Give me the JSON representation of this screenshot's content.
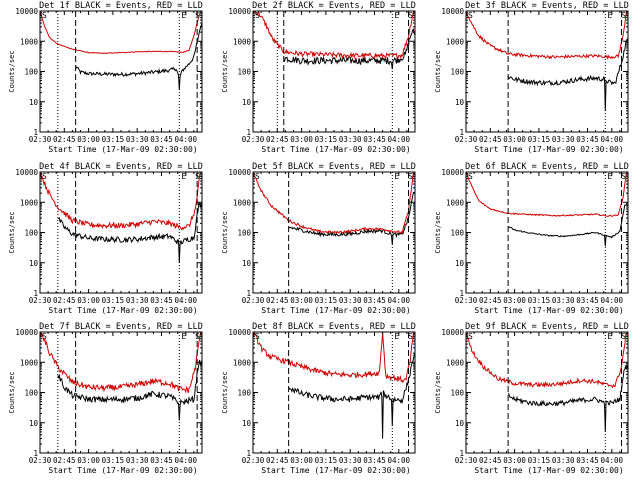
{
  "figure": {
    "xlabel": "Start Time (17-Mar-09 02:30:00)",
    "ylabel": "Counts/sec"
  },
  "chart_data": [
    {
      "type": "line",
      "title": "Det 1f BLACK = Events, RED = LLD",
      "flags": [
        "S",
        "E",
        "S"
      ],
      "xlim_min": [
        0,
        100
      ],
      "ylim": [
        1,
        10000
      ],
      "x_ticks": [
        "02:30",
        "02:45",
        "03:00",
        "03:15",
        "03:30",
        "03:45",
        "04:00"
      ],
      "y_ticks": [
        "1",
        "10",
        "100",
        "1000",
        "10000"
      ],
      "dotted_lines_min": [
        11,
        86
      ],
      "dashed_lines_min": [
        22,
        97
      ],
      "series": [
        {
          "name": "Events",
          "color": "#000000",
          "start_min": 22,
          "anchors_min": [
            22,
            25,
            30,
            40,
            50,
            60,
            70,
            80,
            84,
            86,
            88,
            92,
            95,
            97,
            99
          ],
          "anchors_val": [
            150,
            95,
            85,
            82,
            80,
            85,
            95,
            110,
            125,
            60,
            110,
            180,
            300,
            900,
            3000
          ],
          "noise": 0.06,
          "spikes": [
            [
              86,
              25
            ]
          ]
        },
        {
          "name": "LLD",
          "color": "#d00000",
          "start_min": 0,
          "anchors_min": [
            0,
            3,
            6,
            11,
            20,
            30,
            40,
            50,
            60,
            70,
            80,
            88,
            92,
            95,
            97,
            99
          ],
          "anchors_val": [
            10000,
            3000,
            1300,
            800,
            550,
            420,
            400,
            420,
            450,
            460,
            460,
            430,
            500,
            1500,
            4000,
            10000
          ],
          "noise": 0.01,
          "spikes": []
        }
      ]
    },
    {
      "type": "line",
      "title": "Det 2f BLACK = Events, RED = LLD",
      "flags": [
        "S",
        "E",
        "S"
      ],
      "xlim_min": [
        0,
        100
      ],
      "ylim": [
        1,
        10000
      ],
      "x_ticks": [
        "02:30",
        "02:45",
        "03:00",
        "03:15",
        "03:30",
        "03:45",
        "04:00"
      ],
      "y_ticks": [
        "1",
        "10",
        "100",
        "1000",
        "10000"
      ],
      "dotted_lines_min": [
        15,
        86
      ],
      "dashed_lines_min": [
        19,
        96
      ],
      "series": [
        {
          "name": "Events",
          "color": "#000000",
          "start_min": 19,
          "anchors_min": [
            19,
            30,
            50,
            70,
            86,
            90,
            94,
            98
          ],
          "anchors_val": [
            280,
            230,
            230,
            230,
            230,
            250,
            350,
            2000
          ],
          "noise": 0.12,
          "spikes": [
            [
              86,
              120
            ]
          ]
        },
        {
          "name": "LLD",
          "color": "#d00000",
          "start_min": 0,
          "anchors_min": [
            0,
            4,
            8,
            12,
            19,
            30,
            60,
            86,
            92,
            96,
            99
          ],
          "anchors_val": [
            10000,
            8000,
            3500,
            1200,
            450,
            380,
            340,
            330,
            350,
            1500,
            10000
          ],
          "noise": 0.08,
          "spikes": []
        }
      ]
    },
    {
      "type": "line",
      "title": "Det 3f BLACK = Events, RED = LLD",
      "flags": [
        "S",
        "E",
        "S"
      ],
      "xlim_min": [
        0,
        100
      ],
      "ylim": [
        1,
        10000
      ],
      "x_ticks": [
        "02:30",
        "02:45",
        "03:00",
        "03:15",
        "03:30",
        "03:45",
        "04:00"
      ],
      "y_ticks": [
        "1",
        "10",
        "100",
        "1000",
        "10000"
      ],
      "dotted_lines_min": [
        86
      ],
      "dashed_lines_min": [
        26,
        96
      ],
      "series": [
        {
          "name": "Events",
          "color": "#000000",
          "start_min": 26,
          "anchors_min": [
            26,
            30,
            40,
            50,
            60,
            70,
            80,
            86,
            88,
            92,
            96,
            99
          ],
          "anchors_val": [
            70,
            55,
            45,
            42,
            45,
            55,
            60,
            55,
            45,
            40,
            200,
            1000
          ],
          "noise": 0.08,
          "spikes": [
            [
              86,
              5
            ]
          ]
        },
        {
          "name": "LLD",
          "color": "#d00000",
          "start_min": 0,
          "anchors_min": [
            0,
            4,
            8,
            15,
            26,
            40,
            55,
            70,
            80,
            88,
            94,
            97,
            99
          ],
          "anchors_val": [
            10000,
            3500,
            1500,
            700,
            380,
            330,
            300,
            320,
            330,
            300,
            320,
            1500,
            10000
          ],
          "noise": 0.05,
          "spikes": []
        }
      ]
    },
    {
      "type": "line",
      "title": "Det 4f BLACK = Events, RED = LLD",
      "flags": [
        "S",
        "E",
        "S"
      ],
      "xlim_min": [
        0,
        100
      ],
      "ylim": [
        1,
        10000
      ],
      "x_ticks": [
        "02:30",
        "02:45",
        "03:00",
        "03:15",
        "03:30",
        "03:45",
        "04:00"
      ],
      "y_ticks": [
        "1",
        "10",
        "100",
        "1000",
        "10000"
      ],
      "dotted_lines_min": [
        11,
        86
      ],
      "dashed_lines_min": [
        22,
        97
      ],
      "series": [
        {
          "name": "Events",
          "color": "#000000",
          "start_min": 11,
          "anchors_min": [
            11,
            15,
            20,
            30,
            40,
            50,
            60,
            70,
            80,
            86,
            90,
            95,
            98
          ],
          "anchors_val": [
            300,
            150,
            90,
            65,
            60,
            58,
            60,
            70,
            75,
            45,
            55,
            70,
            800
          ],
          "noise": 0.09,
          "spikes": [
            [
              86,
              10
            ]
          ]
        },
        {
          "name": "LLD",
          "color": "#d00000",
          "start_min": 0,
          "anchors_min": [
            0,
            3,
            6,
            11,
            20,
            30,
            40,
            50,
            60,
            70,
            80,
            86,
            92,
            96,
            99
          ],
          "anchors_val": [
            10000,
            4000,
            1800,
            700,
            250,
            180,
            170,
            170,
            190,
            230,
            200,
            150,
            160,
            600,
            10000
          ],
          "noise": 0.09,
          "spikes": []
        }
      ]
    },
    {
      "type": "line",
      "title": "Det 5f BLACK = Events, RED = LLD",
      "flags": [
        "S",
        "E",
        "S"
      ],
      "xlim_min": [
        0,
        100
      ],
      "ylim": [
        1,
        10000
      ],
      "x_ticks": [
        "02:30",
        "02:45",
        "03:00",
        "03:15",
        "03:30",
        "03:45",
        "04:00"
      ],
      "y_ticks": [
        "1",
        "10",
        "100",
        "1000",
        "10000"
      ],
      "dotted_lines_min": [
        86
      ],
      "dashed_lines_min": [
        22,
        96
      ],
      "series": [
        {
          "name": "Events",
          "color": "#000000",
          "start_min": 22,
          "anchors_min": [
            22,
            30,
            40,
            50,
            60,
            70,
            80,
            86,
            92,
            96,
            99
          ],
          "anchors_val": [
            150,
            120,
            90,
            85,
            90,
            110,
            115,
            85,
            85,
            300,
            2000
          ],
          "noise": 0.06,
          "spikes": [
            [
              86,
              40
            ]
          ]
        },
        {
          "name": "LLD",
          "color": "#d00000",
          "start_min": 0,
          "anchors_min": [
            0,
            3,
            6,
            11,
            22,
            30,
            40,
            50,
            60,
            70,
            80,
            86,
            92,
            96,
            99
          ],
          "anchors_val": [
            10000,
            4000,
            2000,
            800,
            250,
            160,
            110,
            100,
            110,
            135,
            130,
            110,
            100,
            500,
            10000
          ],
          "noise": 0.04,
          "spikes": []
        }
      ]
    },
    {
      "type": "line",
      "title": "Det 6f BLACK = Events, RED = LLD",
      "flags": [
        "S",
        "E",
        "S"
      ],
      "xlim_min": [
        0,
        100
      ],
      "ylim": [
        1,
        10000
      ],
      "x_ticks": [
        "02:30",
        "02:45",
        "03:00",
        "03:15",
        "03:30",
        "03:45",
        "04:00"
      ],
      "y_ticks": [
        "1",
        "10",
        "100",
        "1000",
        "10000"
      ],
      "dotted_lines_min": [
        86
      ],
      "dashed_lines_min": [
        26,
        96
      ],
      "series": [
        {
          "name": "Events",
          "color": "#000000",
          "start_min": 26,
          "anchors_min": [
            26,
            30,
            40,
            50,
            60,
            70,
            80,
            86,
            90,
            95,
            98
          ],
          "anchors_val": [
            160,
            120,
            95,
            80,
            75,
            85,
            100,
            80,
            70,
            110,
            800
          ],
          "noise": 0.02,
          "spikes": [
            [
              86,
              35
            ]
          ]
        },
        {
          "name": "LLD",
          "color": "#d00000",
          "start_min": 0,
          "anchors_min": [
            0,
            4,
            8,
            15,
            26,
            40,
            55,
            70,
            80,
            88,
            94,
            97,
            99
          ],
          "anchors_val": [
            10000,
            3000,
            1100,
            600,
            430,
            390,
            360,
            380,
            400,
            350,
            380,
            1500,
            10000
          ],
          "noise": 0.02,
          "spikes": []
        }
      ]
    },
    {
      "type": "line",
      "title": "Det 7f BLACK = Events, RED = LLD",
      "flags": [
        "S",
        "E",
        "S"
      ],
      "xlim_min": [
        0,
        100
      ],
      "ylim": [
        1,
        10000
      ],
      "x_ticks": [
        "02:30",
        "02:45",
        "03:00",
        "03:15",
        "03:30",
        "03:45",
        "04:00"
      ],
      "y_ticks": [
        "1",
        "10",
        "100",
        "1000",
        "10000"
      ],
      "dotted_lines_min": [
        11,
        86
      ],
      "dashed_lines_min": [
        22,
        97
      ],
      "series": [
        {
          "name": "Events",
          "color": "#000000",
          "start_min": 11,
          "anchors_min": [
            11,
            15,
            20,
            30,
            40,
            50,
            60,
            70,
            80,
            86,
            90,
            95,
            98
          ],
          "anchors_val": [
            400,
            150,
            80,
            60,
            58,
            60,
            65,
            90,
            75,
            45,
            50,
            60,
            1000
          ],
          "noise": 0.1,
          "spikes": [
            [
              86,
              12
            ]
          ]
        },
        {
          "name": "LLD",
          "color": "#d00000",
          "start_min": 0,
          "anchors_min": [
            0,
            3,
            6,
            11,
            20,
            30,
            40,
            50,
            60,
            70,
            80,
            86,
            92,
            96,
            99
          ],
          "anchors_val": [
            10000,
            5000,
            2000,
            700,
            220,
            150,
            140,
            150,
            180,
            240,
            200,
            130,
            120,
            700,
            10000
          ],
          "noise": 0.1,
          "spikes": []
        }
      ]
    },
    {
      "type": "line",
      "title": "Det 8f BLACK = Events, RED = LLD",
      "flags": [
        "S",
        "E",
        "S"
      ],
      "xlim_min": [
        0,
        100
      ],
      "ylim": [
        1,
        10000
      ],
      "x_ticks": [
        "02:30",
        "02:45",
        "03:00",
        "03:15",
        "03:30",
        "03:45",
        "04:00"
      ],
      "y_ticks": [
        "1",
        "10",
        "100",
        "1000",
        "10000"
      ],
      "dotted_lines_min": [
        86
      ],
      "dashed_lines_min": [
        22,
        96
      ],
      "series": [
        {
          "name": "Events",
          "color": "#000000",
          "start_min": 22,
          "anchors_min": [
            22,
            30,
            40,
            50,
            60,
            70,
            78,
            80,
            82,
            86,
            92,
            96,
            99
          ],
          "anchors_val": [
            150,
            90,
            70,
            60,
            60,
            70,
            70,
            100,
            80,
            60,
            55,
            250,
            1500
          ],
          "noise": 0.1,
          "spikes": [
            [
              80,
              3
            ],
            [
              86,
              8
            ]
          ]
        },
        {
          "name": "LLD",
          "color": "#d00000",
          "start_min": 0,
          "anchors_min": [
            0,
            3,
            6,
            11,
            22,
            30,
            40,
            50,
            60,
            70,
            78,
            80,
            82,
            88,
            94,
            97,
            99
          ],
          "anchors_val": [
            10000,
            5000,
            2500,
            1500,
            1000,
            700,
            500,
            400,
            380,
            400,
            450,
            10000,
            350,
            300,
            250,
            1000,
            10000
          ],
          "noise": 0.09,
          "spikes": []
        }
      ]
    },
    {
      "type": "line",
      "title": "Det 9f BLACK = Events, RED = LLD",
      "flags": [
        "S",
        "E",
        "S"
      ],
      "xlim_min": [
        0,
        100
      ],
      "ylim": [
        1,
        10000
      ],
      "x_ticks": [
        "02:30",
        "02:45",
        "03:00",
        "03:15",
        "03:30",
        "03:45",
        "04:00"
      ],
      "y_ticks": [
        "1",
        "10",
        "100",
        "1000",
        "10000"
      ],
      "dotted_lines_min": [
        86
      ],
      "dashed_lines_min": [
        26,
        96
      ],
      "series": [
        {
          "name": "Events",
          "color": "#000000",
          "start_min": 26,
          "anchors_min": [
            26,
            30,
            40,
            50,
            60,
            70,
            80,
            86,
            90,
            95,
            98
          ],
          "anchors_val": [
            80,
            60,
            45,
            42,
            45,
            55,
            60,
            45,
            45,
            60,
            700
          ],
          "noise": 0.08,
          "spikes": [
            [
              86,
              5
            ]
          ]
        },
        {
          "name": "LLD",
          "color": "#d00000",
          "start_min": 0,
          "anchors_min": [
            0,
            3,
            6,
            11,
            20,
            30,
            40,
            50,
            60,
            70,
            80,
            86,
            92,
            96,
            99
          ],
          "anchors_val": [
            10000,
            3000,
            1500,
            700,
            280,
            200,
            180,
            180,
            200,
            250,
            230,
            180,
            170,
            700,
            10000
          ],
          "noise": 0.07,
          "spikes": []
        }
      ]
    }
  ]
}
